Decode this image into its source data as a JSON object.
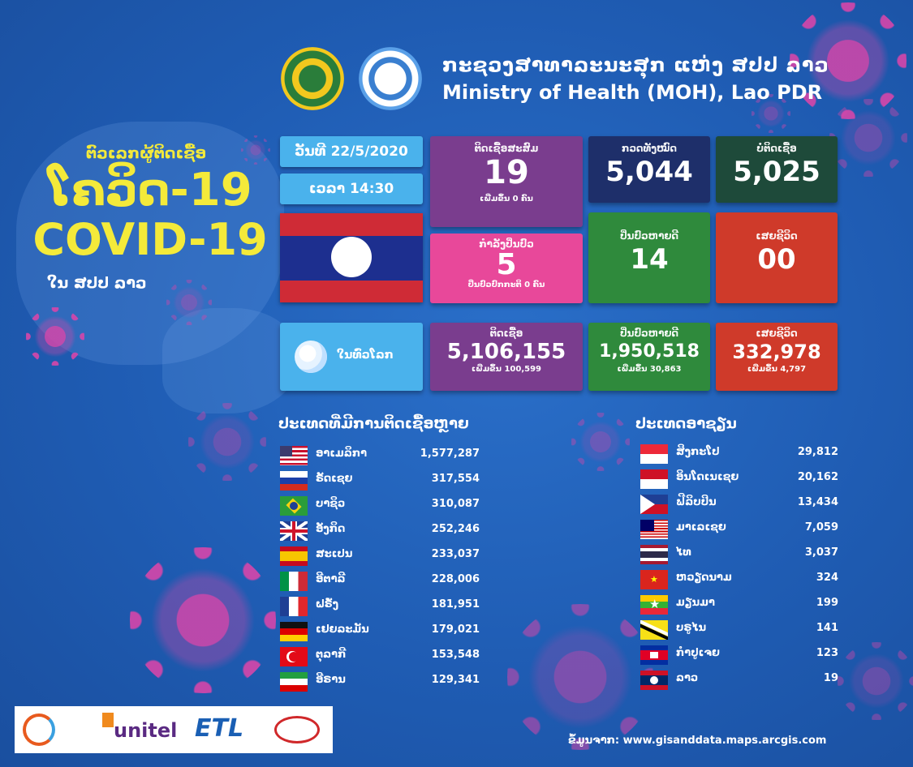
{
  "header": {
    "title_lo": "ກະຊວງສາທາລະນະສຸກ ແຫ່ງ ສປປ ລາວ",
    "title_en": "Ministry of Health (MOH), Lao PDR"
  },
  "left": {
    "heading": "ຕົວເລກຜູ້ຕິດເຊື້ອ",
    "lao19": "ໂຄວິດ-19",
    "covid19": "COVID-19",
    "country": "ໃນ ສປປ ລາວ"
  },
  "info": {
    "date": "ວັນທີ 22/5/2020",
    "time": "ເວລາ 14:30"
  },
  "laos_stats": {
    "cumulative": {
      "label": "ຕິດເຊື້ອສະສົມ",
      "value": "19",
      "sub": "ເພີ່ມຂຶ້ນ 0 ຄົນ"
    },
    "treating": {
      "label": "ກຳລັງປິ່ນປົວ",
      "value": "5",
      "sub": "ປິ່ນປົວປົກກະຕິ 0 ຄົນ"
    },
    "tested": {
      "label": "ກວດທັງໝົດ",
      "value": "5,044"
    },
    "negative": {
      "label": "ບໍ່ຕິດເຊື້ອ",
      "value": "5,025"
    },
    "recovered": {
      "label": "ປິ່ນປົວຫາຍດີ",
      "value": "14"
    },
    "deaths": {
      "label": "ເສຍຊີວິດ",
      "value": "00"
    }
  },
  "world": {
    "label": "ໃນທົ່ວໂລກ",
    "infected": {
      "label": "ຕິດເຊື້ອ",
      "value": "5,106,155",
      "sub": "ເພີ່ມຂຶ້ນ 100,599"
    },
    "recovered": {
      "label": "ປິ່ນປົວຫາຍດີ",
      "value": "1,950,518",
      "sub": "ເພີ່ມຂຶ້ນ 30,863"
    },
    "deaths": {
      "label": "ເສຍຊີວິດ",
      "value": "332,978",
      "sub": "ເພີ່ມຂຶ້ນ 4,797"
    }
  },
  "top_countries": {
    "title": "ປະເທດທີ່ມີການຕິດເຊື້ອຫຼາຍ",
    "rows": [
      {
        "name": "ອາເມລິກາ",
        "value": "1,577,287",
        "flag": "us"
      },
      {
        "name": "ຣັດເຊຍ",
        "value": "317,554",
        "flag": "ru"
      },
      {
        "name": "ບາຊິວ",
        "value": "310,087",
        "flag": "br"
      },
      {
        "name": "ອັງກິດ",
        "value": "252,246",
        "flag": "gb"
      },
      {
        "name": "ສະເປນ",
        "value": "233,037",
        "flag": "es"
      },
      {
        "name": "ອີຕາລີ",
        "value": "228,006",
        "flag": "it"
      },
      {
        "name": "ຝຣັ່ງ",
        "value": "181,951",
        "flag": "fr"
      },
      {
        "name": "ເຢຍລະມັນ",
        "value": "179,021",
        "flag": "de"
      },
      {
        "name": "ຕຸລາກີ",
        "value": "153,548",
        "flag": "tr"
      },
      {
        "name": "ອີຣານ",
        "value": "129,341",
        "flag": "ir"
      }
    ]
  },
  "asean": {
    "title": "ປະເທດອາຊຽນ",
    "rows": [
      {
        "name": "ສິງກະໂປ",
        "value": "29,812",
        "flag": "sg"
      },
      {
        "name": "ອິນໂດເນເຊຍ",
        "value": "20,162",
        "flag": "id"
      },
      {
        "name": "ຟີລິບປິນ",
        "value": "13,434",
        "flag": "ph"
      },
      {
        "name": "ມາເລເຊຍ",
        "value": "7,059",
        "flag": "my"
      },
      {
        "name": "ໄທ",
        "value": "3,037",
        "flag": "th"
      },
      {
        "name": "ຫວຽດນາມ",
        "value": "324",
        "flag": "vn"
      },
      {
        "name": "ມຽນມາ",
        "value": "199",
        "flag": "mm"
      },
      {
        "name": "ບຣູໄນ",
        "value": "141",
        "flag": "bn"
      },
      {
        "name": "ກຳປູເຈຍ",
        "value": "123",
        "flag": "kh"
      },
      {
        "name": "ລາວ",
        "value": "19",
        "flag": "la"
      }
    ]
  },
  "sponsors": {
    "unitel": "unitel",
    "etl": "ETL"
  },
  "source": "ຂໍ້ມູນຈາກ: www.gisanddata.maps.arcgis.com",
  "colors": {
    "background": "#1f5cb3",
    "purple": "#7a3d8e",
    "pink": "#e8489a",
    "navy": "#1e2f6a",
    "darkgreen": "#1e4a3a",
    "green": "#2f8a3c",
    "red": "#cf3a2a",
    "lightblue": "#4ab2ec",
    "title_yellow": "#f4ea3a"
  }
}
